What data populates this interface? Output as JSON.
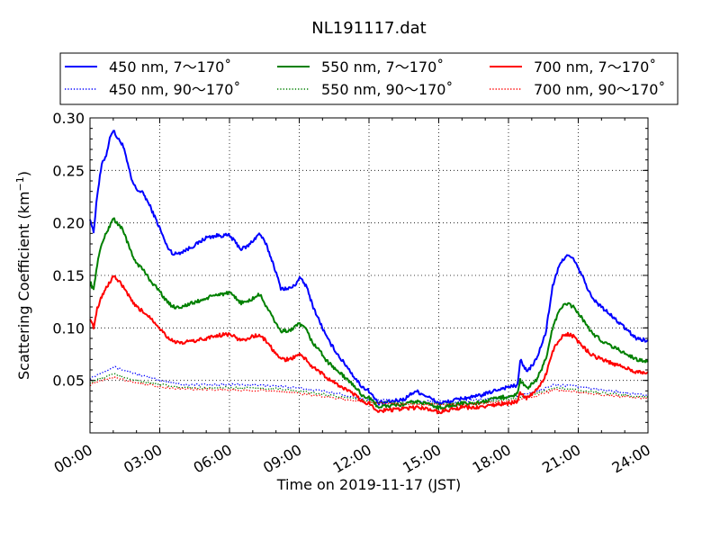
{
  "chart_data": {
    "type": "line",
    "title": "NL191117.dat",
    "xlabel": "Time on 2019-11-17 (JST)",
    "ylabel": "Scattering Coefficient (km",
    "ylabel_exp": "−1",
    "ylabel_close": ")",
    "x_unit": "hours",
    "xlim": [
      0,
      24
    ],
    "ylim": [
      0.0,
      0.3
    ],
    "x_tick_labels": [
      "00:00",
      "03:00",
      "06:00",
      "09:00",
      "12:00",
      "15:00",
      "18:00",
      "21:00",
      "24:00"
    ],
    "y_tick_labels": [
      "0.05",
      "0.10",
      "0.15",
      "0.20",
      "0.25",
      "0.30"
    ],
    "grid": true,
    "legend_position": "top, above plot",
    "series": [
      {
        "name": "450 nm, 7～170˚",
        "color": "#0000ff",
        "style": "solid",
        "x": [
          0.0,
          0.15,
          0.3,
          0.5,
          0.7,
          0.9,
          1.0,
          1.2,
          1.4,
          1.6,
          1.8,
          2.0,
          2.3,
          2.6,
          3.0,
          3.3,
          3.6,
          3.9,
          4.2,
          4.6,
          5.0,
          5.5,
          6.0,
          6.5,
          6.8,
          7.0,
          7.3,
          7.6,
          7.9,
          8.2,
          8.5,
          8.8,
          9.0,
          9.3,
          9.6,
          9.9,
          10.2,
          10.5,
          10.8,
          11.1,
          11.4,
          11.7,
          12.0,
          12.4,
          13.0,
          13.5,
          14.0,
          14.5,
          15.0,
          15.5,
          16.0,
          16.5,
          17.0,
          17.5,
          18.0,
          18.4,
          18.5,
          18.8,
          19.2,
          19.6,
          19.9,
          20.2,
          20.5,
          20.8,
          21.2,
          21.6,
          22.0,
          22.5,
          23.0,
          23.5,
          24.0
        ],
        "y": [
          0.205,
          0.19,
          0.225,
          0.255,
          0.265,
          0.285,
          0.288,
          0.28,
          0.275,
          0.258,
          0.24,
          0.232,
          0.228,
          0.215,
          0.195,
          0.178,
          0.17,
          0.172,
          0.175,
          0.18,
          0.186,
          0.188,
          0.188,
          0.175,
          0.178,
          0.183,
          0.19,
          0.178,
          0.16,
          0.138,
          0.137,
          0.14,
          0.148,
          0.14,
          0.12,
          0.105,
          0.09,
          0.08,
          0.07,
          0.062,
          0.052,
          0.044,
          0.04,
          0.028,
          0.03,
          0.032,
          0.04,
          0.035,
          0.028,
          0.03,
          0.033,
          0.034,
          0.037,
          0.041,
          0.044,
          0.045,
          0.07,
          0.058,
          0.07,
          0.095,
          0.14,
          0.16,
          0.17,
          0.165,
          0.148,
          0.128,
          0.12,
          0.11,
          0.1,
          0.09,
          0.088
        ]
      },
      {
        "name": "450 nm, 90～170˚",
        "color": "#0000ff",
        "style": "dotted",
        "x": [
          0,
          1,
          2,
          3,
          4,
          6,
          8,
          10,
          12,
          14,
          16,
          18,
          19,
          20,
          21,
          22,
          24
        ],
        "y": [
          0.052,
          0.063,
          0.056,
          0.05,
          0.046,
          0.046,
          0.045,
          0.04,
          0.032,
          0.03,
          0.03,
          0.034,
          0.038,
          0.046,
          0.044,
          0.041,
          0.036
        ]
      },
      {
        "name": "550 nm, 7～170˚",
        "color": "#008000",
        "style": "solid",
        "x": [
          0.0,
          0.15,
          0.3,
          0.5,
          0.7,
          0.9,
          1.0,
          1.2,
          1.4,
          1.6,
          1.8,
          2.0,
          2.3,
          2.6,
          3.0,
          3.3,
          3.6,
          3.9,
          4.2,
          4.6,
          5.0,
          5.5,
          6.0,
          6.5,
          6.8,
          7.0,
          7.3,
          7.6,
          7.9,
          8.2,
          8.5,
          8.8,
          9.0,
          9.3,
          9.6,
          9.9,
          10.2,
          10.5,
          10.8,
          11.1,
          11.4,
          11.7,
          12.0,
          12.4,
          13.0,
          13.5,
          14.0,
          14.5,
          15.0,
          15.5,
          16.0,
          16.5,
          17.0,
          17.5,
          18.0,
          18.4,
          18.5,
          18.8,
          19.2,
          19.6,
          19.9,
          20.2,
          20.5,
          20.8,
          21.2,
          21.6,
          22.0,
          22.5,
          23.0,
          23.5,
          24.0
        ],
        "y": [
          0.145,
          0.135,
          0.16,
          0.18,
          0.19,
          0.2,
          0.205,
          0.198,
          0.195,
          0.182,
          0.17,
          0.162,
          0.155,
          0.145,
          0.135,
          0.125,
          0.12,
          0.12,
          0.122,
          0.125,
          0.128,
          0.132,
          0.133,
          0.124,
          0.125,
          0.128,
          0.132,
          0.12,
          0.108,
          0.097,
          0.097,
          0.1,
          0.104,
          0.098,
          0.085,
          0.078,
          0.068,
          0.062,
          0.056,
          0.05,
          0.044,
          0.036,
          0.033,
          0.025,
          0.026,
          0.027,
          0.03,
          0.028,
          0.024,
          0.026,
          0.028,
          0.028,
          0.03,
          0.033,
          0.035,
          0.037,
          0.05,
          0.042,
          0.05,
          0.07,
          0.1,
          0.118,
          0.123,
          0.12,
          0.108,
          0.095,
          0.088,
          0.082,
          0.076,
          0.07,
          0.068
        ]
      },
      {
        "name": "550 nm, 90～170˚",
        "color": "#008000",
        "style": "dotted",
        "x": [
          0,
          1,
          2,
          3,
          4,
          6,
          8,
          10,
          12,
          14,
          16,
          18,
          19,
          20,
          21,
          22,
          24
        ],
        "y": [
          0.048,
          0.056,
          0.05,
          0.046,
          0.043,
          0.043,
          0.042,
          0.037,
          0.03,
          0.028,
          0.028,
          0.032,
          0.036,
          0.043,
          0.041,
          0.038,
          0.034
        ]
      },
      {
        "name": "700 nm, 7～170˚",
        "color": "#ff0000",
        "style": "solid",
        "x": [
          0.0,
          0.15,
          0.3,
          0.5,
          0.7,
          0.9,
          1.0,
          1.2,
          1.4,
          1.6,
          1.8,
          2.0,
          2.3,
          2.6,
          3.0,
          3.3,
          3.6,
          3.9,
          4.2,
          4.6,
          5.0,
          5.5,
          6.0,
          6.5,
          6.8,
          7.0,
          7.3,
          7.6,
          7.9,
          8.2,
          8.5,
          8.8,
          9.0,
          9.3,
          9.6,
          9.9,
          10.2,
          10.5,
          10.8,
          11.1,
          11.4,
          11.7,
          12.0,
          12.4,
          13.0,
          13.5,
          14.0,
          14.5,
          15.0,
          15.5,
          16.0,
          16.5,
          17.0,
          17.5,
          18.0,
          18.4,
          18.5,
          18.8,
          19.2,
          19.6,
          19.9,
          20.2,
          20.5,
          20.8,
          21.2,
          21.6,
          22.0,
          22.5,
          23.0,
          23.5,
          24.0
        ],
        "y": [
          0.11,
          0.1,
          0.118,
          0.13,
          0.138,
          0.145,
          0.15,
          0.145,
          0.14,
          0.133,
          0.125,
          0.12,
          0.115,
          0.11,
          0.1,
          0.092,
          0.087,
          0.085,
          0.087,
          0.088,
          0.09,
          0.093,
          0.094,
          0.088,
          0.09,
          0.092,
          0.093,
          0.087,
          0.078,
          0.07,
          0.07,
          0.072,
          0.075,
          0.07,
          0.062,
          0.058,
          0.052,
          0.048,
          0.044,
          0.04,
          0.036,
          0.03,
          0.028,
          0.021,
          0.022,
          0.023,
          0.024,
          0.023,
          0.02,
          0.022,
          0.024,
          0.024,
          0.025,
          0.027,
          0.028,
          0.03,
          0.038,
          0.033,
          0.04,
          0.055,
          0.078,
          0.09,
          0.094,
          0.092,
          0.082,
          0.074,
          0.07,
          0.066,
          0.062,
          0.058,
          0.057
        ]
      },
      {
        "name": "700 nm, 90～170˚",
        "color": "#ff0000",
        "style": "dotted",
        "x": [
          0,
          1,
          2,
          3,
          4,
          6,
          8,
          10,
          12,
          14,
          16,
          18,
          19,
          20,
          21,
          22,
          24
        ],
        "y": [
          0.046,
          0.053,
          0.048,
          0.044,
          0.042,
          0.041,
          0.04,
          0.035,
          0.029,
          0.027,
          0.027,
          0.03,
          0.034,
          0.041,
          0.039,
          0.036,
          0.033
        ]
      }
    ]
  }
}
